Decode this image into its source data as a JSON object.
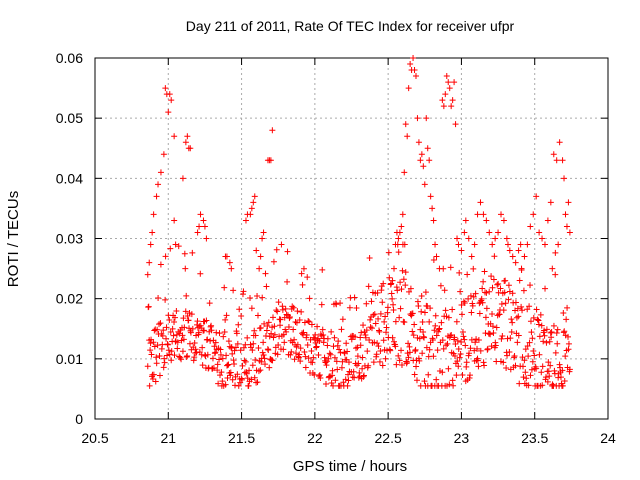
{
  "chart_data": {
    "type": "scatter",
    "title": "Day 211 of 2011, Rate Of TEC Index for receiver ufpr",
    "xlabel": "GPS time / hours",
    "ylabel": "ROTI / TECUs",
    "xlim": [
      20.5,
      24
    ],
    "ylim": [
      0,
      0.06
    ],
    "xticks": [
      20.5,
      21,
      21.5,
      22,
      22.5,
      23,
      23.5,
      24
    ],
    "xtick_labels": [
      "20.5",
      "21",
      "21.5",
      "22",
      "22.5",
      "23",
      "23.5",
      "24"
    ],
    "yticks": [
      0,
      0.01,
      0.02,
      0.03,
      0.04,
      0.05,
      0.06
    ],
    "ytick_labels": [
      "0",
      "0.01",
      "0.02",
      "0.03",
      "0.04",
      "0.05",
      "0.06"
    ],
    "grid": true,
    "marker": "plus",
    "color": "#ff0000",
    "series": [
      {
        "name": "ROTI",
        "points": [
          [
            20.86,
            0.024
          ],
          [
            20.87,
            0.026
          ],
          [
            20.88,
            0.029
          ],
          [
            20.89,
            0.031
          ],
          [
            20.9,
            0.034
          ],
          [
            20.92,
            0.037
          ],
          [
            20.93,
            0.039
          ],
          [
            20.95,
            0.041
          ],
          [
            20.97,
            0.044
          ],
          [
            20.98,
            0.055
          ],
          [
            20.99,
            0.054
          ],
          [
            21.0,
            0.051
          ],
          [
            21.01,
            0.054
          ],
          [
            21.02,
            0.053
          ],
          [
            21.04,
            0.047
          ],
          [
            21.05,
            0.029
          ],
          [
            21.04,
            0.033
          ],
          [
            21.1,
            0.04
          ],
          [
            21.12,
            0.046
          ],
          [
            21.13,
            0.047
          ],
          [
            21.14,
            0.045
          ],
          [
            21.15,
            0.045
          ],
          [
            21.2,
            0.031
          ],
          [
            21.21,
            0.032
          ],
          [
            21.22,
            0.034
          ],
          [
            21.24,
            0.033
          ],
          [
            21.25,
            0.032
          ],
          [
            21.26,
            0.03
          ],
          [
            21.39,
            0.027
          ],
          [
            21.4,
            0.027
          ],
          [
            21.42,
            0.026
          ],
          [
            21.43,
            0.025
          ],
          [
            21.53,
            0.033
          ],
          [
            21.54,
            0.034
          ],
          [
            21.56,
            0.034
          ],
          [
            21.57,
            0.035
          ],
          [
            21.58,
            0.036
          ],
          [
            21.59,
            0.037
          ],
          [
            21.6,
            0.028
          ],
          [
            21.62,
            0.025
          ],
          [
            21.63,
            0.027
          ],
          [
            21.64,
            0.03
          ],
          [
            21.65,
            0.031
          ],
          [
            21.68,
            0.043
          ],
          [
            21.69,
            0.043
          ],
          [
            21.7,
            0.043
          ],
          [
            21.71,
            0.048
          ],
          [
            22.53,
            0.023
          ],
          [
            22.54,
            0.025
          ],
          [
            22.55,
            0.029
          ],
          [
            22.56,
            0.031
          ],
          [
            22.57,
            0.03
          ],
          [
            22.58,
            0.031
          ],
          [
            22.59,
            0.032
          ],
          [
            22.6,
            0.034
          ],
          [
            22.61,
            0.041
          ],
          [
            22.62,
            0.049
          ],
          [
            22.63,
            0.047
          ],
          [
            22.64,
            0.055
          ],
          [
            22.65,
            0.059
          ],
          [
            22.66,
            0.058
          ],
          [
            22.67,
            0.06
          ],
          [
            22.68,
            0.058
          ],
          [
            22.69,
            0.057
          ],
          [
            22.7,
            0.05
          ],
          [
            22.71,
            0.046
          ],
          [
            22.72,
            0.043
          ],
          [
            22.73,
            0.044
          ],
          [
            22.74,
            0.042
          ],
          [
            22.75,
            0.039
          ],
          [
            22.76,
            0.05
          ],
          [
            22.77,
            0.045
          ],
          [
            22.78,
            0.043
          ],
          [
            22.79,
            0.037
          ],
          [
            22.8,
            0.035
          ],
          [
            22.81,
            0.033
          ],
          [
            22.82,
            0.029
          ],
          [
            22.83,
            0.027
          ],
          [
            22.85,
            0.025
          ],
          [
            22.87,
            0.053
          ],
          [
            22.88,
            0.052
          ],
          [
            22.89,
            0.054
          ],
          [
            22.9,
            0.057
          ],
          [
            22.91,
            0.056
          ],
          [
            22.92,
            0.055
          ],
          [
            22.93,
            0.052
          ],
          [
            22.94,
            0.053
          ],
          [
            22.95,
            0.056
          ],
          [
            22.96,
            0.049
          ],
          [
            22.97,
            0.03
          ],
          [
            22.98,
            0.029
          ],
          [
            23.0,
            0.028
          ],
          [
            23.02,
            0.031
          ],
          [
            23.03,
            0.033
          ],
          [
            23.05,
            0.03
          ],
          [
            23.07,
            0.027
          ],
          [
            23.09,
            0.029
          ],
          [
            23.11,
            0.034
          ],
          [
            23.13,
            0.036
          ],
          [
            23.15,
            0.034
          ],
          [
            23.17,
            0.033
          ],
          [
            23.19,
            0.031
          ],
          [
            23.21,
            0.029
          ],
          [
            23.23,
            0.03
          ],
          [
            23.25,
            0.031
          ],
          [
            23.27,
            0.034
          ],
          [
            23.29,
            0.033
          ],
          [
            23.31,
            0.03
          ],
          [
            23.33,
            0.028
          ],
          [
            23.35,
            0.027
          ],
          [
            23.37,
            0.026
          ],
          [
            23.39,
            0.028
          ],
          [
            23.41,
            0.025
          ],
          [
            23.43,
            0.027
          ],
          [
            23.45,
            0.029
          ],
          [
            23.47,
            0.032
          ],
          [
            23.49,
            0.034
          ],
          [
            23.51,
            0.037
          ],
          [
            23.53,
            0.031
          ],
          [
            23.55,
            0.03
          ],
          [
            23.57,
            0.029
          ],
          [
            23.59,
            0.033
          ],
          [
            23.61,
            0.036
          ],
          [
            23.63,
            0.044
          ],
          [
            23.65,
            0.043
          ],
          [
            23.67,
            0.046
          ],
          [
            23.69,
            0.043
          ],
          [
            23.7,
            0.04
          ],
          [
            23.71,
            0.034
          ],
          [
            23.72,
            0.032
          ],
          [
            23.73,
            0.036
          ],
          [
            23.74,
            0.031
          ],
          [
            23.66,
            0.029
          ],
          [
            23.64,
            0.024
          ],
          [
            23.62,
            0.025
          ]
        ]
      }
    ]
  }
}
